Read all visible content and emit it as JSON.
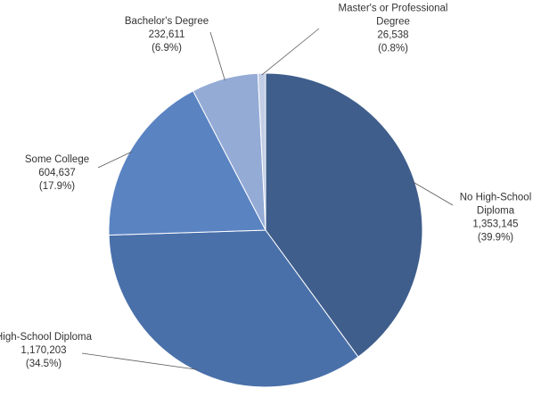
{
  "chart_data": {
    "type": "pie",
    "title": "",
    "slices": [
      {
        "label": "No High-School Diploma",
        "label_lines": [
          "No High-School",
          "Diploma"
        ],
        "value": 1353145,
        "value_text": "1,353,145",
        "percent_text": "(39.9%)",
        "color": "#3F5E8C"
      },
      {
        "label": "High-School Diploma",
        "label_lines": [
          "High-School Diploma"
        ],
        "value": 1170203,
        "value_text": "1,170,203",
        "percent_text": "(34.5%)",
        "color": "#4A70AA"
      },
      {
        "label": "Some College",
        "label_lines": [
          "Some College"
        ],
        "value": 604637,
        "value_text": "604,637",
        "percent_text": "(17.9%)",
        "color": "#5A83C2"
      },
      {
        "label": "Bachelor's Degree",
        "label_lines": [
          "Bachelor's Degree"
        ],
        "value": 232611,
        "value_text": "232,611",
        "percent_text": "(6.9%)",
        "color": "#94ABD6"
      },
      {
        "label": "Master's or Professional Degree",
        "label_lines": [
          "Master's or Professional",
          "Degree"
        ],
        "value": 26538,
        "value_text": "26,538",
        "percent_text": "(0.8%)",
        "color": "#C3CFE6"
      }
    ],
    "legend": "none",
    "start_angle": "12 o'clock",
    "direction": "clockwise"
  }
}
